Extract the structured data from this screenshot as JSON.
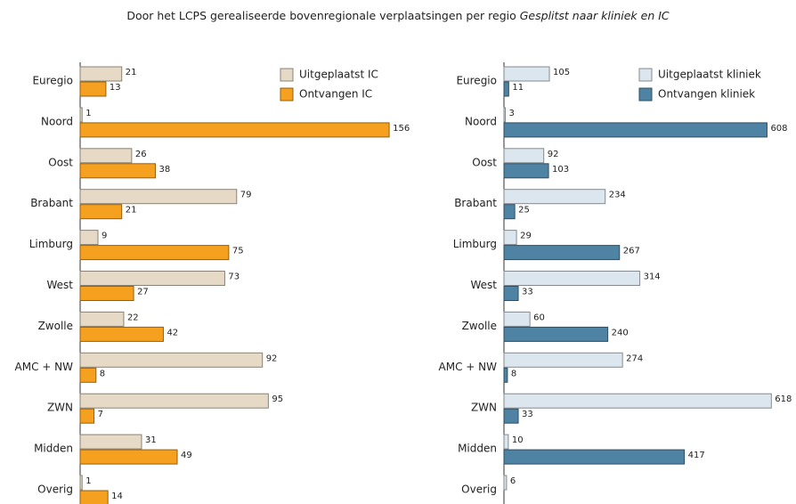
{
  "title": "Door het LCPS gerealiseerde bovenregionale verplaatsingen per regio",
  "subtitle": "Gesplitst naar kliniek en IC",
  "chart_data": [
    {
      "type": "bar",
      "orientation": "horizontal",
      "xlim": [
        0,
        160
      ],
      "categories": [
        "Euregio",
        "Noord",
        "Oost",
        "Brabant",
        "Limburg",
        "West",
        "Zwolle",
        "AMC + NW",
        "ZWN",
        "Midden",
        "Overig"
      ],
      "series": [
        {
          "name": "Uitgeplaatst IC",
          "color": "#e6d9c6",
          "values": [
            21,
            1,
            26,
            79,
            9,
            73,
            22,
            92,
            95,
            31,
            1
          ]
        },
        {
          "name": "Ontvangen IC",
          "color": "#f5a01e",
          "values": [
            13,
            156,
            38,
            21,
            75,
            27,
            42,
            8,
            7,
            49,
            14
          ]
        }
      ]
    },
    {
      "type": "bar",
      "orientation": "horizontal",
      "xlim": [
        0,
        640
      ],
      "categories": [
        "Euregio",
        "Noord",
        "Oost",
        "Brabant",
        "Limburg",
        "West",
        "Zwolle",
        "AMC + NW",
        "ZWN",
        "Midden",
        "Overig"
      ],
      "series": [
        {
          "name": "Uitgeplaatst kliniek",
          "color": "#dce6ef",
          "values": [
            105,
            3,
            92,
            234,
            29,
            314,
            60,
            274,
            618,
            10,
            6
          ]
        },
        {
          "name": "Ontvangen kliniek",
          "color": "#4f83a3",
          "values": [
            11,
            608,
            103,
            25,
            267,
            33,
            240,
            8,
            33,
            417,
            null
          ]
        }
      ]
    }
  ]
}
